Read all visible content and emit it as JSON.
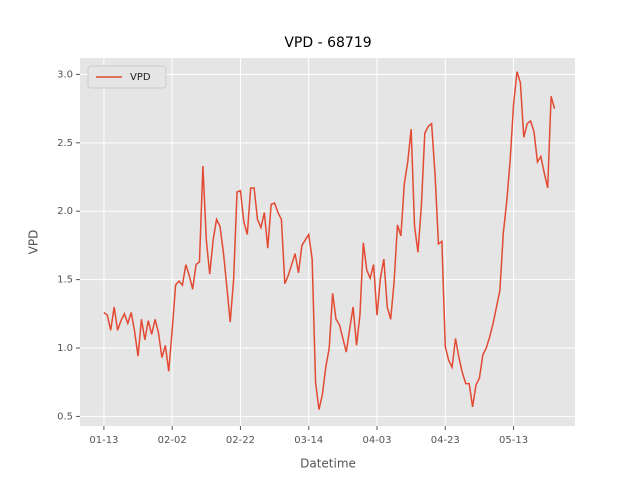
{
  "chart_data": {
    "type": "line",
    "title": "VPD - 68719",
    "xlabel": "Datetime",
    "ylabel": "VPD",
    "x": [
      "01-13",
      "01-14",
      "01-15",
      "01-16",
      "01-17",
      "01-18",
      "01-19",
      "01-20",
      "01-21",
      "01-22",
      "01-23",
      "01-24",
      "01-25",
      "01-26",
      "01-27",
      "01-28",
      "01-29",
      "01-30",
      "01-31",
      "02-01",
      "02-02",
      "02-03",
      "02-04",
      "02-05",
      "02-06",
      "02-07",
      "02-08",
      "02-09",
      "02-10",
      "02-11",
      "02-12",
      "02-13",
      "02-14",
      "02-15",
      "02-16",
      "02-17",
      "02-18",
      "02-19",
      "02-20",
      "02-21",
      "02-22",
      "02-23",
      "02-24",
      "02-25",
      "02-26",
      "02-27",
      "02-28",
      "03-01",
      "03-02",
      "03-03",
      "03-04",
      "03-05",
      "03-06",
      "03-07",
      "03-08",
      "03-09",
      "03-10",
      "03-11",
      "03-12",
      "03-13",
      "03-14",
      "03-15",
      "03-16",
      "03-17",
      "03-18",
      "03-19",
      "03-20",
      "03-21",
      "03-22",
      "03-23",
      "03-24",
      "03-25",
      "03-26",
      "03-27",
      "03-28",
      "03-29",
      "03-30",
      "03-31",
      "04-01",
      "04-02",
      "04-03",
      "04-04",
      "04-05",
      "04-06",
      "04-07",
      "04-08",
      "04-09",
      "04-10",
      "04-11",
      "04-12",
      "04-13",
      "04-14",
      "04-15",
      "04-16",
      "04-17",
      "04-18",
      "04-19",
      "04-20",
      "04-21",
      "04-22",
      "04-23",
      "04-24",
      "04-25",
      "04-26",
      "04-27",
      "04-28",
      "04-29",
      "04-30",
      "05-01",
      "05-02",
      "05-03",
      "05-04",
      "05-05",
      "05-06",
      "05-07",
      "05-08",
      "05-09",
      "05-10",
      "05-11",
      "05-12",
      "05-13",
      "05-14",
      "05-15",
      "05-16",
      "05-17",
      "05-18",
      "05-19",
      "05-20",
      "05-21",
      "05-22",
      "05-23",
      "05-24",
      "05-25"
    ],
    "series": [
      {
        "name": "VPD",
        "color": "#e24a33",
        "values": [
          1.26,
          1.24,
          1.13,
          1.3,
          1.13,
          1.2,
          1.25,
          1.18,
          1.26,
          1.12,
          0.94,
          1.21,
          1.06,
          1.2,
          1.1,
          1.21,
          1.11,
          0.93,
          1.02,
          0.83,
          1.13,
          1.46,
          1.49,
          1.46,
          1.61,
          1.53,
          1.43,
          1.61,
          1.63,
          2.33,
          1.79,
          1.54,
          1.79,
          1.94,
          1.89,
          1.7,
          1.45,
          1.19,
          1.5,
          2.14,
          2.15,
          1.92,
          1.83,
          2.17,
          2.17,
          1.94,
          1.88,
          1.99,
          1.73,
          2.05,
          2.06,
          1.99,
          1.94,
          1.47,
          1.53,
          1.61,
          1.69,
          1.55,
          1.75,
          1.79,
          1.83,
          1.65,
          0.75,
          0.55,
          0.66,
          0.86,
          1.0,
          1.4,
          1.21,
          1.17,
          1.07,
          0.97,
          1.14,
          1.3,
          1.02,
          1.24,
          1.77,
          1.57,
          1.51,
          1.61,
          1.24,
          1.51,
          1.65,
          1.3,
          1.21,
          1.48,
          1.9,
          1.82,
          2.2,
          2.36,
          2.6,
          1.89,
          1.7,
          2.04,
          2.57,
          2.62,
          2.64,
          2.27,
          1.76,
          1.78,
          1.01,
          0.91,
          0.86,
          1.07,
          0.93,
          0.82,
          0.74,
          0.74,
          0.57,
          0.73,
          0.78,
          0.95,
          1.0,
          1.08,
          1.18,
          1.3,
          1.42,
          1.84,
          2.07,
          2.37,
          2.78,
          3.02,
          2.94,
          2.54,
          2.64,
          2.66,
          2.58,
          2.36,
          2.4,
          2.28,
          2.17,
          2.84,
          2.75
        ]
      }
    ],
    "xlim": [
      "01-06",
      "05-31"
    ],
    "xticks": [
      "01-13",
      "02-02",
      "02-22",
      "03-14",
      "04-03",
      "04-23",
      "05-13"
    ],
    "ylim": [
      0.43,
      3.12
    ],
    "yticks": [
      0.5,
      {
        "value": 1,
        "label": "1.0"
      },
      1.5,
      {
        "value": 2,
        "label": "2.0"
      },
      2.5,
      {
        "value": 3,
        "label": "3.0"
      }
    ],
    "grid": true,
    "legend": "upper left"
  }
}
